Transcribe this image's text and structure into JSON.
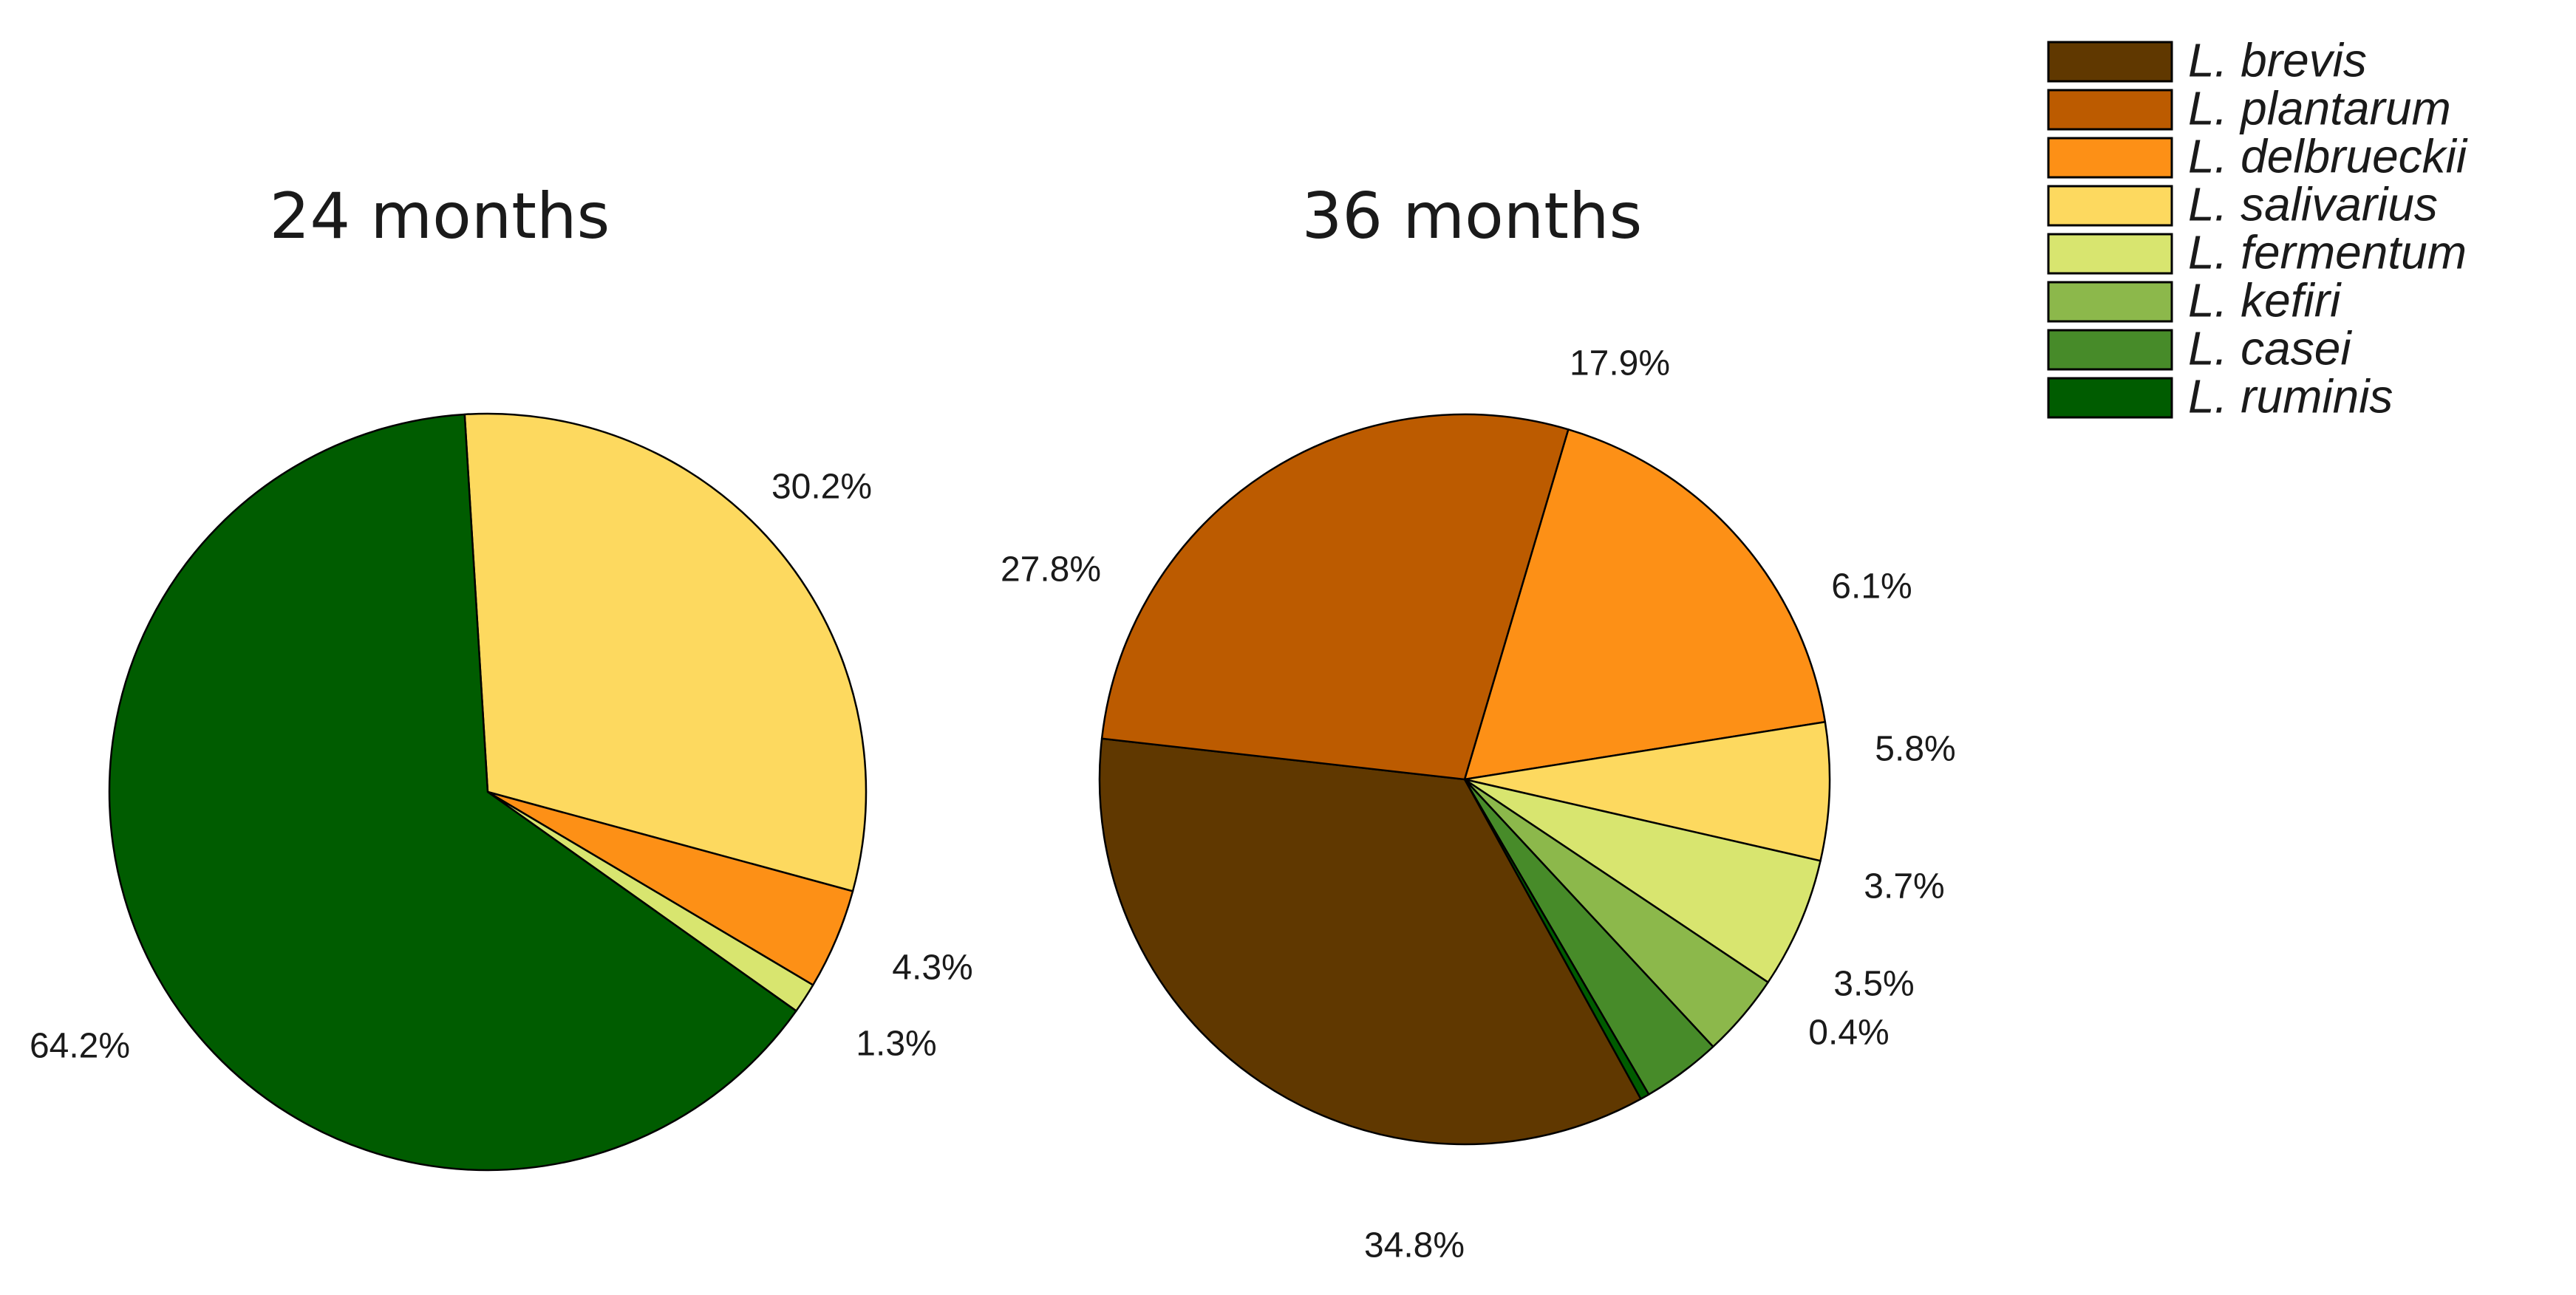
{
  "chart_data": [
    {
      "type": "pie",
      "title": "24 months",
      "slices": [
        {
          "label": "L. salivarius",
          "value": 30.2,
          "value_label": "30.2%"
        },
        {
          "label": "L. delbrueckii",
          "value": 4.3,
          "value_label": "4.3%"
        },
        {
          "label": "L. fermentum",
          "value": 1.3,
          "value_label": "1.3%"
        },
        {
          "label": "L. ruminis",
          "value": 64.2,
          "value_label": "64.2%"
        }
      ]
    },
    {
      "type": "pie",
      "title": "36 months",
      "slices": [
        {
          "label": "L. delbrueckii",
          "value": 17.9,
          "value_label": "17.9%"
        },
        {
          "label": "L. salivarius",
          "value": 6.1,
          "value_label": "6.1%"
        },
        {
          "label": "L. fermentum",
          "value": 5.8,
          "value_label": "5.8%"
        },
        {
          "label": "L. kefiri",
          "value": 3.7,
          "value_label": "3.7%"
        },
        {
          "label": "L. casei",
          "value": 3.5,
          "value_label": "3.5%"
        },
        {
          "label": "L. ruminis",
          "value": 0.4,
          "value_label": "0.4%"
        },
        {
          "label": "L. brevis",
          "value": 34.8,
          "value_label": "34.8%"
        },
        {
          "label": "L. plantarum",
          "value": 27.8,
          "value_label": "27.8%"
        }
      ]
    }
  ],
  "legend": {
    "placement": "top-right",
    "items": [
      {
        "label": "L. brevis",
        "color": "#603800"
      },
      {
        "label": "L. plantarum",
        "color": "#BC5B00"
      },
      {
        "label": "L. delbrueckii",
        "color": "#FD9016"
      },
      {
        "label": "L. salivarius",
        "color": "#FDD95F"
      },
      {
        "label": "L. fermentum",
        "color": "#D8E56F"
      },
      {
        "label": "L. kefiri",
        "color": "#8CB84B"
      },
      {
        "label": "L. casei",
        "color": "#478B29"
      },
      {
        "label": "L. ruminis",
        "color": "#005C00"
      }
    ]
  }
}
